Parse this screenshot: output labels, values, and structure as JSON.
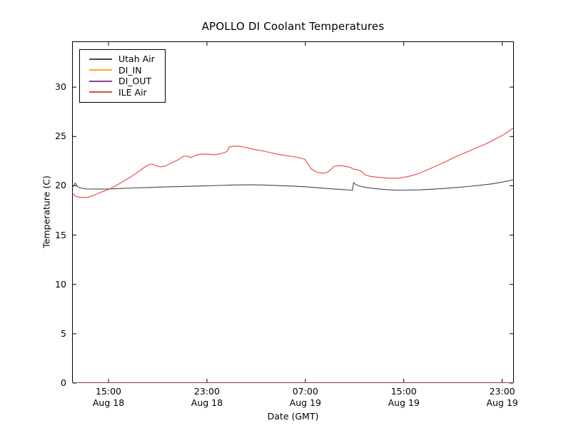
{
  "figure": {
    "title": "APOLLO DI Coolant Temperatures"
  },
  "chart_data": {
    "type": "line",
    "title": "APOLLO DI Coolant Temperatures",
    "xlabel": "Date (GMT)",
    "ylabel": "Temperature (C)",
    "x_unit": "hours since Aug 18 00:00 GMT",
    "xlim": [
      12.04,
      47.95
    ],
    "ylim": [
      0,
      34.64
    ],
    "grid": false,
    "tick_style": "inward ticks on all four spines",
    "x_ticks": [
      {
        "x": 15,
        "time": "15:00",
        "date": "Aug 18"
      },
      {
        "x": 23,
        "time": "23:00",
        "date": "Aug 18"
      },
      {
        "x": 31,
        "time": "07:00",
        "date": "Aug 19"
      },
      {
        "x": 39,
        "time": "15:00",
        "date": "Aug 19"
      },
      {
        "x": 47,
        "time": "23:00",
        "date": "Aug 19"
      }
    ],
    "y_ticks": [
      0,
      5,
      10,
      15,
      20,
      25,
      30
    ],
    "legend": {
      "position": "upper left"
    },
    "series": [
      {
        "name": "Utah Air",
        "color": "#474747",
        "opacity": 1,
        "points": [
          [
            12.05,
            19.8
          ],
          [
            12.18,
            20.05
          ],
          [
            12.3,
            20.27
          ],
          [
            12.45,
            19.95
          ],
          [
            12.7,
            19.78
          ],
          [
            13.2,
            19.68
          ],
          [
            14.0,
            19.66
          ],
          [
            15.0,
            19.68
          ],
          [
            16.0,
            19.73
          ],
          [
            17.0,
            19.78
          ],
          [
            18.0,
            19.82
          ],
          [
            19.5,
            19.88
          ],
          [
            21.0,
            19.93
          ],
          [
            22.5,
            19.98
          ],
          [
            24.0,
            20.03
          ],
          [
            25.2,
            20.08
          ],
          [
            26.5,
            20.1
          ],
          [
            27.5,
            20.08
          ],
          [
            28.5,
            20.04
          ],
          [
            30.0,
            19.97
          ],
          [
            31.0,
            19.9
          ],
          [
            32.0,
            19.8
          ],
          [
            33.0,
            19.7
          ],
          [
            34.0,
            19.62
          ],
          [
            34.7,
            19.56
          ],
          [
            34.82,
            19.55
          ],
          [
            34.92,
            20.32
          ],
          [
            35.1,
            20.12
          ],
          [
            35.4,
            19.97
          ],
          [
            35.9,
            19.83
          ],
          [
            36.6,
            19.72
          ],
          [
            37.4,
            19.63
          ],
          [
            38.3,
            19.57
          ],
          [
            39.2,
            19.56
          ],
          [
            40.2,
            19.58
          ],
          [
            41.2,
            19.65
          ],
          [
            42.2,
            19.72
          ],
          [
            43.2,
            19.82
          ],
          [
            44.2,
            19.92
          ],
          [
            45.2,
            20.05
          ],
          [
            46.2,
            20.2
          ],
          [
            47.1,
            20.4
          ],
          [
            47.7,
            20.55
          ],
          [
            47.93,
            20.65
          ]
        ]
      },
      {
        "name": "DI_IN",
        "color": "#ffa733",
        "opacity": 0.45,
        "points": [
          [
            12.04,
            0
          ],
          [
            47.95,
            0
          ]
        ]
      },
      {
        "name": "DI_OUT",
        "color": "#8d3f9d",
        "opacity": 0.5,
        "points": [
          [
            12.04,
            0
          ],
          [
            47.95,
            0
          ]
        ]
      },
      {
        "name": "ILE Air",
        "color": "#e64545",
        "opacity": 1,
        "points": [
          [
            12.05,
            19.3
          ],
          [
            12.3,
            18.95
          ],
          [
            12.7,
            18.82
          ],
          [
            13.3,
            18.82
          ],
          [
            13.8,
            19.05
          ],
          [
            14.4,
            19.35
          ],
          [
            15.0,
            19.62
          ],
          [
            15.6,
            20.0
          ],
          [
            16.2,
            20.45
          ],
          [
            16.8,
            20.9
          ],
          [
            17.4,
            21.4
          ],
          [
            18.0,
            21.95
          ],
          [
            18.3,
            22.15
          ],
          [
            18.55,
            22.2
          ],
          [
            18.8,
            22.05
          ],
          [
            19.2,
            21.92
          ],
          [
            19.6,
            21.98
          ],
          [
            20.0,
            22.25
          ],
          [
            20.6,
            22.6
          ],
          [
            21.1,
            23.0
          ],
          [
            21.4,
            23.0
          ],
          [
            21.7,
            22.87
          ],
          [
            22.1,
            23.1
          ],
          [
            22.5,
            23.2
          ],
          [
            23.0,
            23.22
          ],
          [
            23.5,
            23.15
          ],
          [
            24.0,
            23.22
          ],
          [
            24.4,
            23.35
          ],
          [
            24.65,
            23.5
          ],
          [
            24.8,
            23.92
          ],
          [
            25.1,
            24.0
          ],
          [
            25.6,
            24.0
          ],
          [
            26.1,
            23.9
          ],
          [
            26.8,
            23.7
          ],
          [
            27.5,
            23.55
          ],
          [
            28.2,
            23.35
          ],
          [
            29.0,
            23.15
          ],
          [
            29.8,
            23.0
          ],
          [
            30.5,
            22.85
          ],
          [
            30.95,
            22.7
          ],
          [
            31.15,
            22.3
          ],
          [
            31.5,
            21.7
          ],
          [
            31.9,
            21.4
          ],
          [
            32.3,
            21.28
          ],
          [
            32.7,
            21.32
          ],
          [
            33.0,
            21.55
          ],
          [
            33.3,
            21.95
          ],
          [
            33.8,
            22.05
          ],
          [
            34.3,
            21.97
          ],
          [
            34.7,
            21.85
          ],
          [
            34.85,
            21.7
          ],
          [
            35.3,
            21.6
          ],
          [
            35.6,
            21.45
          ],
          [
            35.8,
            21.12
          ],
          [
            36.3,
            20.95
          ],
          [
            37.0,
            20.85
          ],
          [
            37.8,
            20.76
          ],
          [
            38.6,
            20.78
          ],
          [
            39.3,
            20.92
          ],
          [
            40.0,
            21.15
          ],
          [
            40.6,
            21.45
          ],
          [
            41.1,
            21.72
          ],
          [
            41.8,
            22.1
          ],
          [
            42.5,
            22.5
          ],
          [
            43.3,
            23.0
          ],
          [
            44.1,
            23.4
          ],
          [
            44.9,
            23.85
          ],
          [
            45.6,
            24.2
          ],
          [
            46.3,
            24.65
          ],
          [
            47.0,
            25.1
          ],
          [
            47.55,
            25.55
          ],
          [
            47.93,
            25.9
          ]
        ]
      }
    ]
  }
}
